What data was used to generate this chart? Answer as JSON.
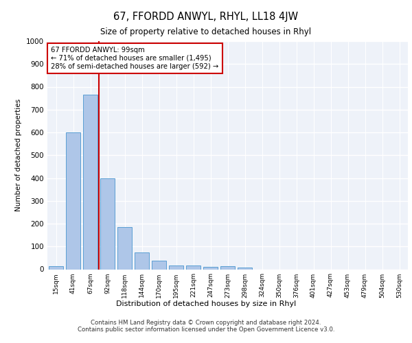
{
  "title": "67, FFORDD ANWYL, RHYL, LL18 4JW",
  "subtitle": "Size of property relative to detached houses in Rhyl",
  "xlabel": "Distribution of detached houses by size in Rhyl",
  "ylabel": "Number of detached properties",
  "bar_labels": [
    "15sqm",
    "41sqm",
    "67sqm",
    "92sqm",
    "118sqm",
    "144sqm",
    "170sqm",
    "195sqm",
    "221sqm",
    "247sqm",
    "273sqm",
    "298sqm",
    "324sqm",
    "350sqm",
    "376sqm",
    "401sqm",
    "427sqm",
    "453sqm",
    "479sqm",
    "504sqm",
    "530sqm"
  ],
  "bar_values": [
    15,
    600,
    765,
    400,
    185,
    75,
    38,
    18,
    16,
    10,
    13,
    7,
    0,
    0,
    0,
    0,
    0,
    0,
    0,
    0,
    0
  ],
  "bar_color": "#aec6e8",
  "bar_edgecolor": "#5a9fd4",
  "ylim": [
    0,
    1000
  ],
  "yticks": [
    0,
    100,
    200,
    300,
    400,
    500,
    600,
    700,
    800,
    900,
    1000
  ],
  "vline_x": 2.5,
  "vline_color": "#cc0000",
  "annotation_title": "67 FFORDD ANWYL: 99sqm",
  "annotation_line1": "← 71% of detached houses are smaller (1,495)",
  "annotation_line2": "28% of semi-detached houses are larger (592) →",
  "annotation_box_color": "#ffffff",
  "annotation_box_edgecolor": "#cc0000",
  "footer_line1": "Contains HM Land Registry data © Crown copyright and database right 2024.",
  "footer_line2": "Contains public sector information licensed under the Open Government Licence v3.0.",
  "background_color": "#eef2f9",
  "grid_color": "#ffffff"
}
